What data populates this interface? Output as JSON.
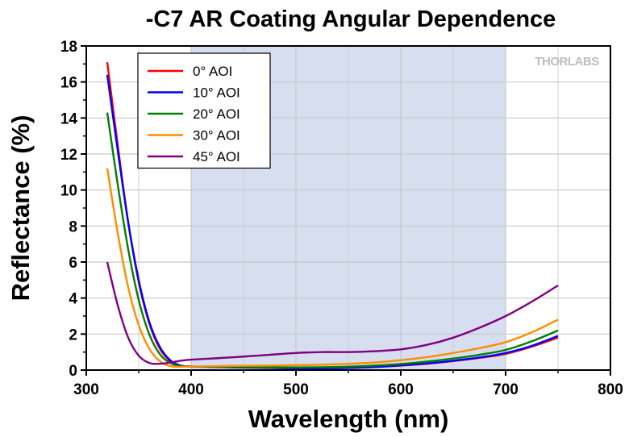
{
  "chart_data": {
    "type": "line",
    "title": "-C7 AR Coating Angular Dependence",
    "xlabel": "Wavelength (nm)",
    "ylabel": "Reflectance (%)",
    "xlim": [
      300,
      800
    ],
    "ylim": [
      0,
      18
    ],
    "xticks": [
      300,
      400,
      500,
      600,
      700,
      800
    ],
    "yticks": [
      0,
      2,
      4,
      6,
      8,
      10,
      12,
      14,
      16,
      18
    ],
    "grid": true,
    "shaded_band": {
      "x_start": 400,
      "x_end": 700,
      "color": "#d7deef"
    },
    "legend_position": "top-left",
    "watermark": "THORLABS",
    "series": [
      {
        "name": "0° AOI",
        "color": "#ff0000",
        "points": [
          [
            320,
            17.1
          ],
          [
            330,
            12.5
          ],
          [
            340,
            8.2
          ],
          [
            350,
            4.9
          ],
          [
            360,
            2.6
          ],
          [
            370,
            1.2
          ],
          [
            380,
            0.5
          ],
          [
            390,
            0.25
          ],
          [
            400,
            0.2
          ],
          [
            425,
            0.18
          ],
          [
            450,
            0.15
          ],
          [
            475,
            0.12
          ],
          [
            500,
            0.1
          ],
          [
            525,
            0.1
          ],
          [
            550,
            0.12
          ],
          [
            575,
            0.17
          ],
          [
            600,
            0.25
          ],
          [
            625,
            0.35
          ],
          [
            650,
            0.5
          ],
          [
            675,
            0.68
          ],
          [
            700,
            0.9
          ],
          [
            725,
            1.3
          ],
          [
            750,
            1.8
          ]
        ]
      },
      {
        "name": "10° AOI",
        "color": "#0000ff",
        "points": [
          [
            320,
            16.4
          ],
          [
            330,
            12.2
          ],
          [
            340,
            8.2
          ],
          [
            350,
            5.0
          ],
          [
            360,
            2.7
          ],
          [
            370,
            1.3
          ],
          [
            380,
            0.55
          ],
          [
            390,
            0.25
          ],
          [
            400,
            0.2
          ],
          [
            425,
            0.17
          ],
          [
            450,
            0.14
          ],
          [
            475,
            0.12
          ],
          [
            500,
            0.1
          ],
          [
            525,
            0.1
          ],
          [
            550,
            0.12
          ],
          [
            575,
            0.17
          ],
          [
            600,
            0.26
          ],
          [
            625,
            0.37
          ],
          [
            650,
            0.52
          ],
          [
            675,
            0.7
          ],
          [
            700,
            0.95
          ],
          [
            725,
            1.35
          ],
          [
            750,
            1.9
          ]
        ]
      },
      {
        "name": "20° AOI",
        "color": "#008000",
        "points": [
          [
            320,
            14.3
          ],
          [
            330,
            10.3
          ],
          [
            340,
            6.7
          ],
          [
            350,
            3.9
          ],
          [
            360,
            2.0
          ],
          [
            370,
            0.9
          ],
          [
            380,
            0.4
          ],
          [
            390,
            0.22
          ],
          [
            400,
            0.2
          ],
          [
            425,
            0.18
          ],
          [
            450,
            0.16
          ],
          [
            475,
            0.15
          ],
          [
            500,
            0.15
          ],
          [
            525,
            0.16
          ],
          [
            550,
            0.19
          ],
          [
            575,
            0.25
          ],
          [
            600,
            0.34
          ],
          [
            625,
            0.47
          ],
          [
            650,
            0.64
          ],
          [
            675,
            0.85
          ],
          [
            700,
            1.12
          ],
          [
            725,
            1.6
          ],
          [
            750,
            2.2
          ]
        ]
      },
      {
        "name": "30° AOI",
        "color": "#ff8c00",
        "points": [
          [
            320,
            11.2
          ],
          [
            330,
            7.6
          ],
          [
            340,
            4.6
          ],
          [
            350,
            2.5
          ],
          [
            360,
            1.2
          ],
          [
            370,
            0.5
          ],
          [
            380,
            0.22
          ],
          [
            390,
            0.18
          ],
          [
            400,
            0.2
          ],
          [
            425,
            0.22
          ],
          [
            450,
            0.24
          ],
          [
            475,
            0.25
          ],
          [
            500,
            0.27
          ],
          [
            525,
            0.3
          ],
          [
            550,
            0.35
          ],
          [
            575,
            0.42
          ],
          [
            600,
            0.55
          ],
          [
            625,
            0.72
          ],
          [
            650,
            0.95
          ],
          [
            675,
            1.22
          ],
          [
            700,
            1.55
          ],
          [
            725,
            2.1
          ],
          [
            750,
            2.8
          ]
        ]
      },
      {
        "name": "45° AOI",
        "color": "#800080",
        "points": [
          [
            320,
            6.0
          ],
          [
            330,
            3.6
          ],
          [
            340,
            1.8
          ],
          [
            350,
            0.8
          ],
          [
            360,
            0.4
          ],
          [
            370,
            0.35
          ],
          [
            380,
            0.42
          ],
          [
            390,
            0.52
          ],
          [
            400,
            0.58
          ],
          [
            425,
            0.66
          ],
          [
            450,
            0.75
          ],
          [
            475,
            0.85
          ],
          [
            500,
            0.95
          ],
          [
            525,
            1.0
          ],
          [
            550,
            1.0
          ],
          [
            575,
            1.05
          ],
          [
            600,
            1.15
          ],
          [
            625,
            1.4
          ],
          [
            650,
            1.8
          ],
          [
            675,
            2.35
          ],
          [
            700,
            3.0
          ],
          [
            725,
            3.8
          ],
          [
            750,
            4.7
          ]
        ]
      }
    ]
  }
}
